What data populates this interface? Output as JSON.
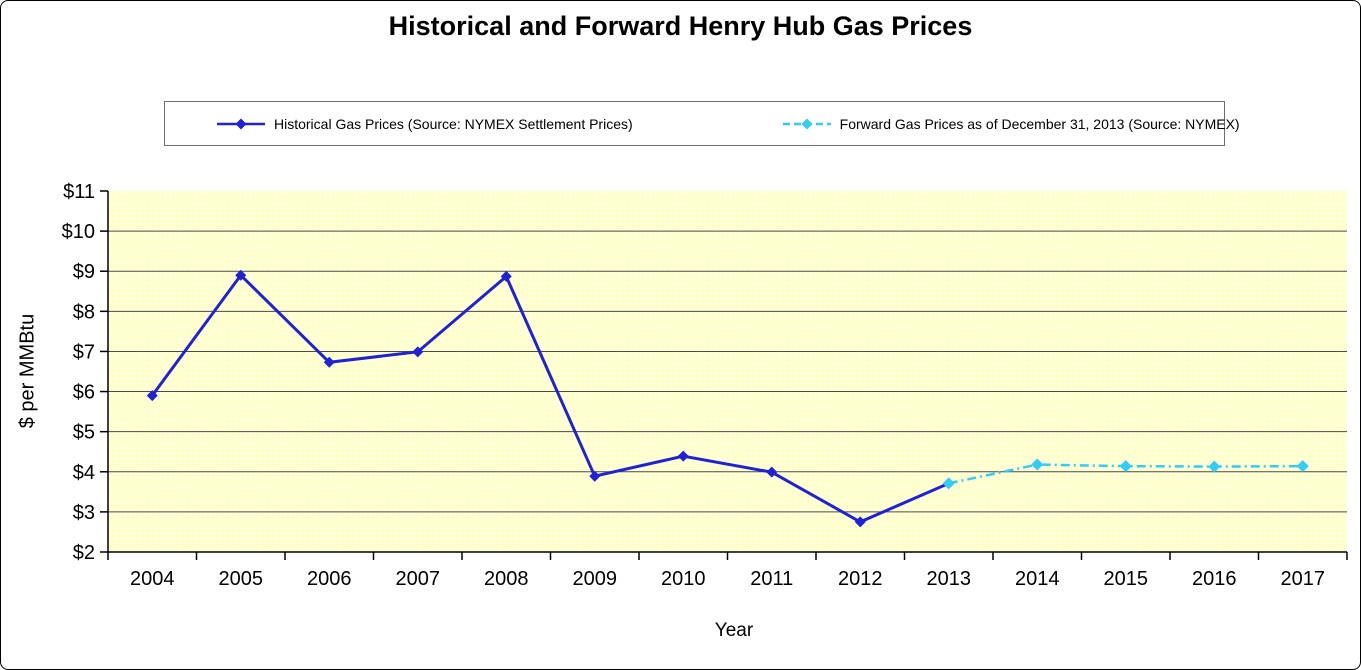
{
  "chart_data": {
    "type": "line",
    "title": "Historical and Forward Henry Hub Gas Prices",
    "xlabel": "Year",
    "ylabel": "$ per MMBtu",
    "categories": [
      "2004",
      "2005",
      "2006",
      "2007",
      "2008",
      "2009",
      "2010",
      "2011",
      "2012",
      "2013",
      "2014",
      "2015",
      "2016",
      "2017"
    ],
    "ylim": [
      2,
      11
    ],
    "y_ticks": [
      2,
      3,
      4,
      5,
      6,
      7,
      8,
      9,
      10,
      11
    ],
    "y_tick_labels": [
      "$2",
      "$3",
      "$4",
      "$5",
      "$6",
      "$7",
      "$8",
      "$9",
      "$10",
      "$11"
    ],
    "grid": "horizontal gridlines on",
    "legend_position": "top",
    "plot_bg_color": "#FFFFCC",
    "gridline_color": "#4a4a4a",
    "axis_color": "#000000",
    "series": [
      {
        "name": "Historical Gas Prices (Source: NYMEX Settlement Prices)",
        "color": "#2121D8",
        "line_style": "solid",
        "marker": "diamond",
        "x": [
          "2004",
          "2005",
          "2006",
          "2007",
          "2008",
          "2009",
          "2010",
          "2011",
          "2012",
          "2013"
        ],
        "values": [
          5.9,
          8.9,
          6.73,
          6.99,
          8.87,
          3.89,
          4.39,
          3.99,
          2.75,
          3.71
        ]
      },
      {
        "name": "Forward Gas Prices as of December 31, 2013 (Source: NYMEX)",
        "color": "#33CCF5",
        "line_style": "dash-dot",
        "marker": "diamond",
        "x": [
          "2013",
          "2014",
          "2015",
          "2016",
          "2017"
        ],
        "values": [
          3.71,
          4.18,
          4.14,
          4.13,
          4.14
        ]
      }
    ]
  }
}
